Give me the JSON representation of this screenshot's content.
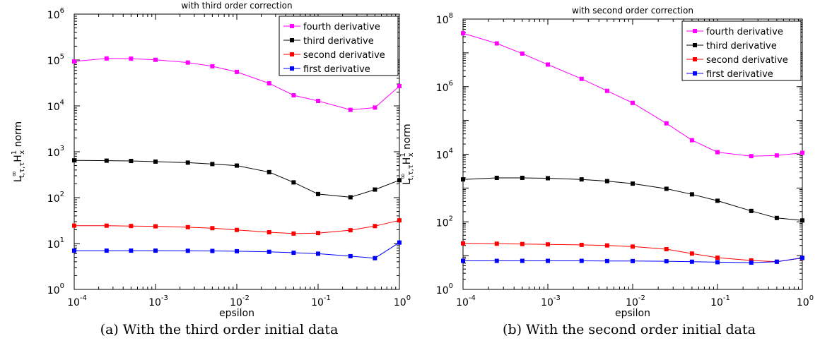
{
  "chart_data": [
    {
      "type": "line",
      "title": "with third order correction",
      "xlabel": "epsilon",
      "ylabel": "L∞ t,τ,τ H1 x norm",
      "xscale": "log",
      "yscale": "log",
      "xlim": [
        0.0001,
        1
      ],
      "ylim": [
        1,
        1000000
      ],
      "x": [
        0.0001,
        0.00025,
        0.0005,
        0.001,
        0.0025,
        0.005,
        0.01,
        0.025,
        0.05,
        0.1,
        0.25,
        0.5,
        1
      ],
      "x_ticks": [
        {
          "base": "10",
          "exp": "-4"
        },
        {
          "base": "10",
          "exp": "-3"
        },
        {
          "base": "10",
          "exp": "-2"
        },
        {
          "base": "10",
          "exp": "-1"
        },
        {
          "base": "10",
          "exp": "0"
        }
      ],
      "y_ticks": [
        {
          "base": "10",
          "exp": "0"
        },
        {
          "base": "10",
          "exp": "1"
        },
        {
          "base": "10",
          "exp": "2"
        },
        {
          "base": "10",
          "exp": "3"
        },
        {
          "base": "10",
          "exp": "4"
        },
        {
          "base": "10",
          "exp": "5"
        },
        {
          "base": "10",
          "exp": "6"
        }
      ],
      "legend_position": "top-right",
      "series": [
        {
          "name": "fourth derivative",
          "color": "#ff00ff",
          "values": [
            93000,
            108000,
            107000,
            101000,
            88000,
            73000,
            55000,
            31000,
            17000,
            12800,
            8200,
            9200,
            27000
          ]
        },
        {
          "name": "third derivative",
          "color": "#000000",
          "values": [
            650,
            640,
            630,
            610,
            580,
            540,
            500,
            360,
            215,
            120,
            102,
            150,
            240
          ]
        },
        {
          "name": "second derivative",
          "color": "#ff0000",
          "values": [
            24.5,
            24.5,
            24.1,
            23.7,
            22.7,
            21.6,
            19.8,
            17.6,
            16.5,
            16.9,
            19.5,
            24,
            32
          ]
        },
        {
          "name": "first derivative",
          "color": "#0000ff",
          "values": [
            7,
            7,
            7,
            7,
            6.95,
            6.9,
            6.8,
            6.6,
            6.3,
            6.0,
            5.3,
            4.8,
            10.5
          ]
        }
      ]
    },
    {
      "type": "line",
      "title": "with second order correction",
      "xlabel": "epsilon",
      "ylabel": "L∞ t,τ,τ H1 x norm",
      "xscale": "log",
      "yscale": "log",
      "xlim": [
        0.0001,
        1
      ],
      "ylim": [
        1,
        100000000
      ],
      "x": [
        0.0001,
        0.00025,
        0.0005,
        0.001,
        0.0025,
        0.005,
        0.01,
        0.025,
        0.05,
        0.1,
        0.25,
        0.5,
        1
      ],
      "x_ticks": [
        {
          "base": "10",
          "exp": "-4"
        },
        {
          "base": "10",
          "exp": "-3"
        },
        {
          "base": "10",
          "exp": "-2"
        },
        {
          "base": "10",
          "exp": "-1"
        },
        {
          "base": "10",
          "exp": "0"
        }
      ],
      "y_ticks": [
        {
          "base": "10",
          "exp": "0"
        },
        {
          "base": "10",
          "exp": "2"
        },
        {
          "base": "10",
          "exp": "4"
        },
        {
          "base": "10",
          "exp": "6"
        },
        {
          "base": "10",
          "exp": "8"
        }
      ],
      "legend_position": "top-right",
      "series": [
        {
          "name": "fourth derivative",
          "color": "#ff00ff",
          "values": [
            38000000,
            19000000,
            9500000,
            4500000,
            1700000,
            750000,
            330000,
            82000,
            26000,
            11500,
            8800,
            9200,
            11000
          ]
        },
        {
          "name": "third derivative",
          "color": "#000000",
          "values": [
            1800,
            2000,
            2000,
            1950,
            1800,
            1600,
            1350,
            950,
            650,
            420,
            210,
            130,
            110
          ]
        },
        {
          "name": "second derivative",
          "color": "#ff0000",
          "values": [
            23,
            22.5,
            22,
            21.5,
            20.8,
            20,
            18.5,
            15.5,
            11.5,
            8.7,
            7.2,
            6.6,
            8.5
          ]
        },
        {
          "name": "first derivative",
          "color": "#0000ff",
          "values": [
            7,
            7,
            7,
            7,
            7,
            6.9,
            6.9,
            6.8,
            6.6,
            6.4,
            6.2,
            6.6,
            8.6
          ]
        }
      ]
    }
  ],
  "captions": {
    "a": "(a)  With the third order initial data",
    "b": "(b)  With the second order initial data"
  }
}
